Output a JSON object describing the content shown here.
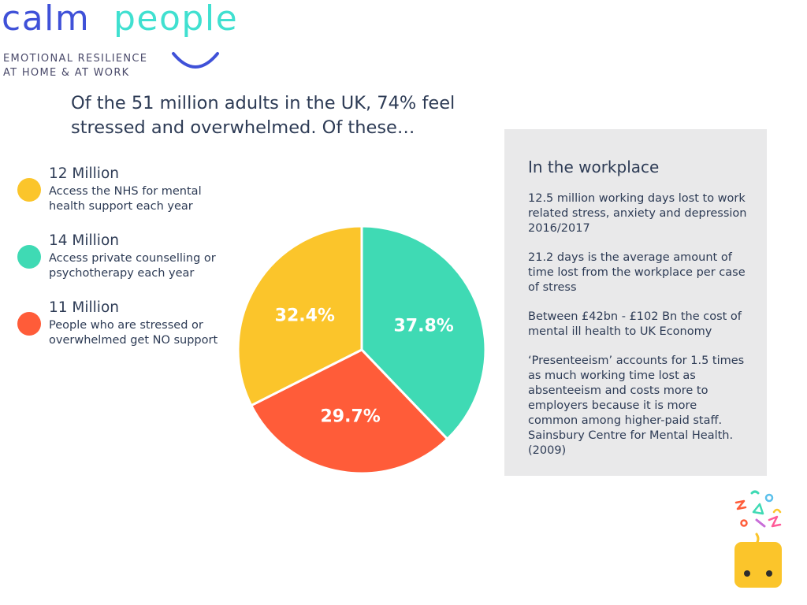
{
  "logo": {
    "word_calm": "calm",
    "word_people": "people",
    "tagline_line1": "EMOTIONAL RESILIENCE",
    "tagline_line2": "AT HOME & AT WORK",
    "colors": {
      "calm": "#3f51d8",
      "people": "#40e0d0",
      "smile": "#3f51d8"
    }
  },
  "headline": {
    "line1": "Of the 51 million adults in the UK, 74% feel",
    "line2": "stressed and overwhelmed. Of these…"
  },
  "legend": [
    {
      "title": "12 Million",
      "description": "Access the NHS for mental health support each year",
      "color": "#fbc52b"
    },
    {
      "title": "14 Million",
      "description": "Access private counselling or psychotherapy each year",
      "color": "#3fdab4"
    },
    {
      "title": "11 Million",
      "description": "People who are stressed or overwhelmed get NO support",
      "color": "#ff5c39"
    }
  ],
  "chart_data": {
    "type": "pie",
    "title": "",
    "slices": [
      {
        "label": "32.4%",
        "value": 32.4,
        "color": "#fbc52b"
      },
      {
        "label": "37.8%",
        "value": 37.8,
        "color": "#3fdab4"
      },
      {
        "label": "29.7%",
        "value": 29.7,
        "color": "#ff5c39"
      }
    ],
    "legend_placement": "left"
  },
  "workplace": {
    "title": "In the workplace",
    "paragraphs": [
      "12.5 million working days lost to work related stress, anxiety and depression 2016/2017",
      "21.2 days is the average amount of time lost from the workplace per case of stress",
      "Between £42bn - £102 Bn the cost of mental ill health to UK Economy",
      "‘Presenteeism’ accounts for 1.5 times as much working time lost as absenteeism and costs more to employers because it is more common among higher-paid staff. Sainsbury Centre for Mental Health. (2009)"
    ]
  },
  "mascot": {
    "icon": "happy-box-mascot-icon",
    "color": "#fbc52b"
  }
}
